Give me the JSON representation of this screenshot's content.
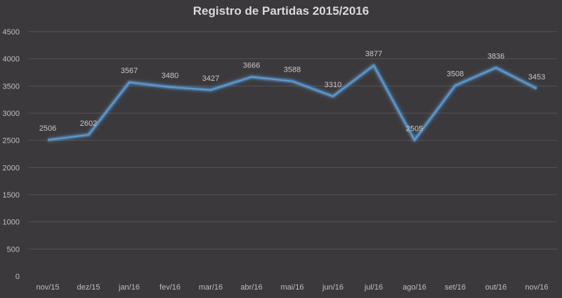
{
  "chart_data": {
    "type": "line",
    "title": "Registro de Partidas 2015/2016",
    "xlabel": "",
    "ylabel": "",
    "ylim": [
      0,
      4500
    ],
    "yticks": [
      0,
      500,
      1000,
      1500,
      2000,
      2500,
      3000,
      3500,
      4000,
      4500
    ],
    "grid": true,
    "legend": null,
    "categories": [
      "nov/15",
      "dez/15",
      "jan/16",
      "fev/16",
      "mar/16",
      "abr/16",
      "mai/16",
      "jun/16",
      "jul/16",
      "ago/16",
      "set/16",
      "out/16",
      "nov/16"
    ],
    "series": [
      {
        "name": "Partidas",
        "values": [
          2506,
          2602,
          3567,
          3480,
          3427,
          3666,
          3588,
          3310,
          3877,
          2505,
          3508,
          3836,
          3453
        ],
        "data_labels": true
      }
    ]
  },
  "colors": {
    "background": "#3b393b",
    "gridline": "#555355",
    "line": "#5b9bd5",
    "glow": "#5b9bd5",
    "tick_text": "#bfbfbf",
    "title_text": "#d9d9d9"
  }
}
